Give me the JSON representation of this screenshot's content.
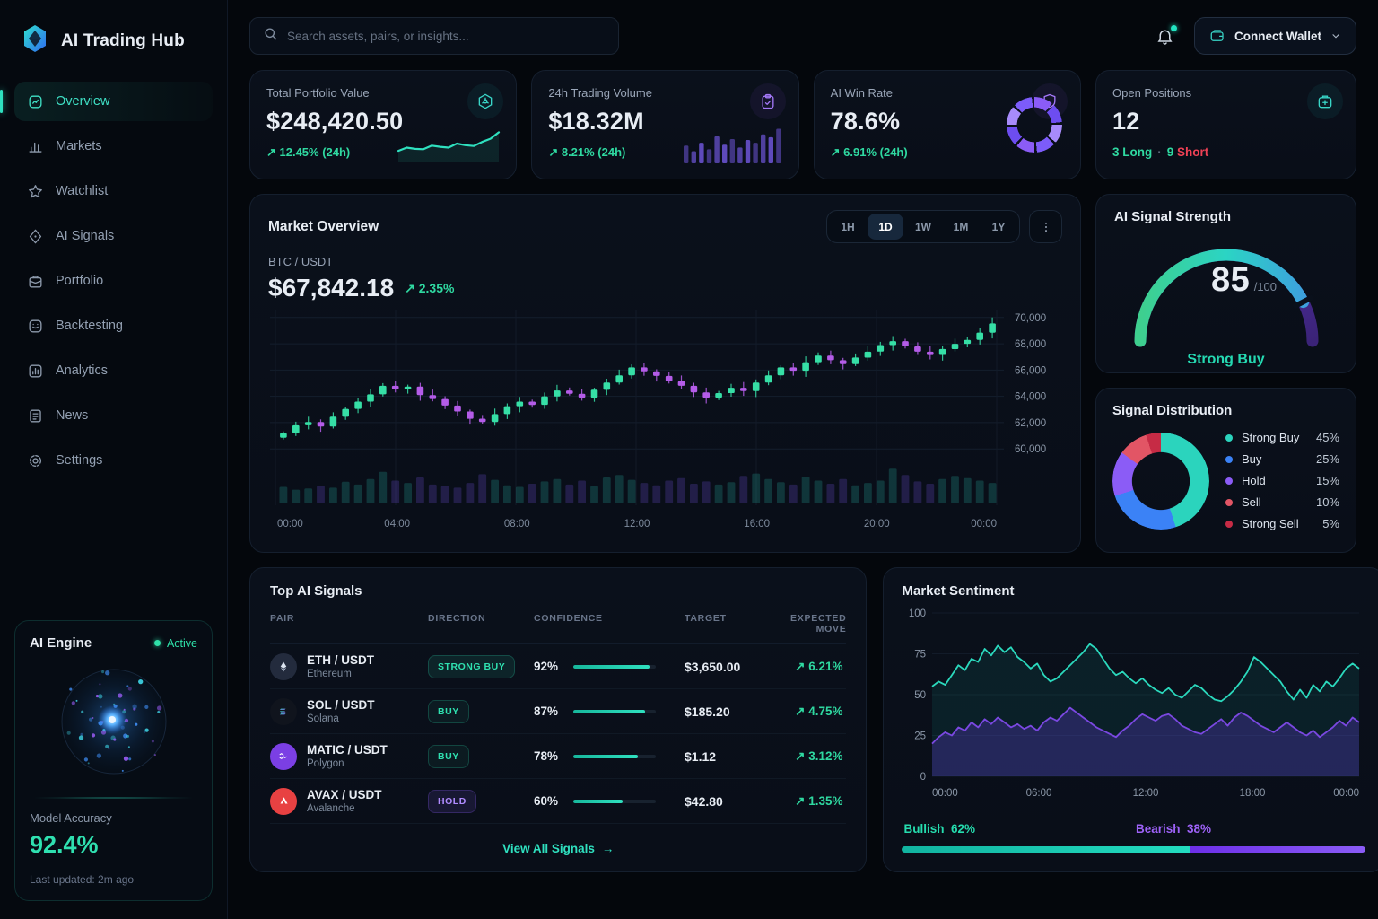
{
  "app": {
    "title": "AI Trading Hub"
  },
  "colors": {
    "accent_teal": "#2fe0bf",
    "positive_green": "#2fd9a1",
    "negative_red": "#ef4155",
    "accent_purple": "#8b5cf6",
    "candle_up": "#3ddfa9",
    "candle_down": "#b45ce8",
    "panel_bg": "#0a101b",
    "page_bg": "#04070c"
  },
  "topbar": {
    "search_placeholder": "Search assets, pairs, or insights...",
    "search_icon": "search-icon",
    "bell_icon": "bell-icon",
    "wallet_label": "Connect Wallet",
    "wallet_icon": "wallet-icon",
    "chevron_icon": "chevron-down-icon"
  },
  "sidebar": {
    "items": [
      {
        "label": "Overview",
        "icon": "overview",
        "active": true
      },
      {
        "label": "Markets",
        "icon": "markets",
        "active": false
      },
      {
        "label": "Watchlist",
        "icon": "watchlist",
        "active": false
      },
      {
        "label": "AI Signals",
        "icon": "signals",
        "active": false
      },
      {
        "label": "Portfolio",
        "icon": "portfolio",
        "active": false
      },
      {
        "label": "Backtesting",
        "icon": "backtesting",
        "active": false
      },
      {
        "label": "Analytics",
        "icon": "analytics",
        "active": false
      },
      {
        "label": "News",
        "icon": "news",
        "active": false
      },
      {
        "label": "Settings",
        "icon": "settings",
        "active": false
      }
    ],
    "ai_engine": {
      "title": "AI Engine",
      "status": "Active",
      "accuracy_label": "Model Accuracy",
      "accuracy": "92.4%",
      "updated": "Last updated: 2m ago"
    }
  },
  "stat_cards": [
    {
      "label": "Total Portfolio Value",
      "value": "$248,420.50",
      "change": "↗ 12.45% (24h)",
      "icon": "vault",
      "chip": "teal",
      "viz": "sparkline"
    },
    {
      "label": "24h Trading Volume",
      "value": "$18.32M",
      "change": "↗ 8.21% (24h)",
      "icon": "clipboard",
      "chip": "purple",
      "viz": "bars"
    },
    {
      "label": "AI Win Rate",
      "value": "78.6%",
      "change": "↗ 6.91% (24h)",
      "icon": "shield",
      "chip": "purple",
      "viz": "ring"
    },
    {
      "label": "Open Positions",
      "value": "12",
      "long_text": "3 Long",
      "separator": "·",
      "short_num": "9",
      "short_text": "Short",
      "icon": "case",
      "chip": "teal"
    }
  ],
  "market": {
    "title": "Market Overview",
    "timeframes": [
      "1H",
      "1D",
      "1W",
      "1M",
      "1Y"
    ],
    "active_timeframe": "1D",
    "more_icon": "dots-vertical-icon",
    "pair": "BTC / USDT",
    "price": "$67,842.18",
    "change": "↗ 2.35%"
  },
  "strength": {
    "title": "AI Signal Strength",
    "value": "85",
    "suffix": "/100",
    "label": "Strong Buy"
  },
  "distribution": {
    "title": "Signal Distribution",
    "items": [
      {
        "label": "Strong Buy",
        "pct": "45%",
        "value": 45,
        "color": "#2bd4bd"
      },
      {
        "label": "Buy",
        "pct": "25%",
        "value": 25,
        "color": "#3b82f6"
      },
      {
        "label": "Hold",
        "pct": "15%",
        "value": 15,
        "color": "#8b5cf6"
      },
      {
        "label": "Sell",
        "pct": "10%",
        "value": 10,
        "color": "#e25565"
      },
      {
        "label": "Strong Sell",
        "pct": "5%",
        "value": 5,
        "color": "#c62b45"
      }
    ]
  },
  "signals": {
    "title": "Top AI Signals",
    "columns": [
      "PAIR",
      "DIRECTION",
      "CONFIDENCE",
      "TARGET",
      "EXPECTED MOVE"
    ],
    "rows": [
      {
        "pair": "ETH / USDT",
        "name": "Ethereum",
        "coin": "eth",
        "direction": "STRONG BUY",
        "confidence": 92,
        "confidence_text": "92%",
        "target": "$3,650.00",
        "move": "↗ 6.21%"
      },
      {
        "pair": "SOL / USDT",
        "name": "Solana",
        "coin": "sol",
        "direction": "BUY",
        "confidence": 87,
        "confidence_text": "87%",
        "target": "$185.20",
        "move": "↗ 4.75%"
      },
      {
        "pair": "MATIC / USDT",
        "name": "Polygon",
        "coin": "matic",
        "direction": "BUY",
        "confidence": 78,
        "confidence_text": "78%",
        "target": "$1.12",
        "move": "↗ 3.12%"
      },
      {
        "pair": "AVAX / USDT",
        "name": "Avalanche",
        "coin": "avax",
        "direction": "HOLD",
        "confidence": 60,
        "confidence_text": "60%",
        "target": "$42.80",
        "move": "↗ 1.35%"
      }
    ],
    "footer": "View All Signals",
    "footer_arrow": "→"
  },
  "sentiment": {
    "title": "Market Sentiment",
    "bullish_label": "Bullish",
    "bullish_value": "62%",
    "bearish_label": "Bearish",
    "bearish_value": "38%",
    "bullish_pct": 62,
    "bearish_pct": 38
  },
  "chart_data": [
    {
      "type": "candlestick",
      "title": "Market Overview",
      "pair": "BTC / USDT",
      "timeframe": "1D",
      "ylim": [
        59400,
        70600
      ],
      "y_ticks": [
        70000,
        68000,
        66000,
        64000,
        62000,
        60000
      ],
      "x_ticks": [
        "00:00",
        "04:00",
        "08:00",
        "12:00",
        "16:00",
        "20:00",
        "00:00"
      ],
      "closes": [
        61200,
        61800,
        62050,
        61700,
        62450,
        63050,
        63600,
        64150,
        64800,
        64550,
        64750,
        64100,
        63800,
        63300,
        62850,
        62300,
        62050,
        62650,
        63250,
        63600,
        63350,
        64000,
        64450,
        64200,
        63900,
        64500,
        65050,
        65600,
        66200,
        65900,
        65550,
        65150,
        64800,
        64300,
        63900,
        64250,
        64650,
        64400,
        65050,
        65600,
        66200,
        65950,
        66600,
        67100,
        66750,
        66450,
        66950,
        67400,
        67900,
        68200,
        67800,
        67400,
        67150,
        67600,
        68000,
        68300,
        68850,
        69550
      ],
      "volumes": [
        42,
        35,
        38,
        45,
        40,
        55,
        48,
        62,
        80,
        58,
        52,
        66,
        48,
        44,
        40,
        52,
        74,
        60,
        46,
        42,
        50,
        56,
        62,
        48,
        58,
        44,
        66,
        72,
        60,
        52,
        46,
        58,
        64,
        50,
        56,
        48,
        54,
        70,
        76,
        62,
        54,
        48,
        68,
        58,
        50,
        62,
        46,
        52,
        58,
        88,
        72,
        56,
        50,
        62,
        70,
        64,
        58,
        52
      ]
    },
    {
      "type": "line",
      "title": "Market Sentiment",
      "ylim": [
        0,
        100
      ],
      "y_ticks": [
        100,
        75,
        50,
        25,
        0
      ],
      "x_ticks": [
        "00:00",
        "06:00",
        "12:00",
        "18:00",
        "00:00"
      ],
      "series": [
        {
          "name": "Bullish",
          "color": "#2bd9bd",
          "values": [
            55,
            58,
            56,
            62,
            68,
            65,
            72,
            70,
            78,
            74,
            80,
            76,
            79,
            73,
            70,
            66,
            69,
            62,
            58,
            60,
            64,
            68,
            72,
            76,
            81,
            78,
            72,
            66,
            62,
            64,
            60,
            57,
            60,
            56,
            53,
            51,
            54,
            50,
            48,
            52,
            56,
            54,
            50,
            47,
            46,
            49,
            53,
            58,
            64,
            73,
            70,
            66,
            62,
            58,
            52,
            47,
            53,
            48,
            56,
            52,
            58,
            55,
            60,
            66,
            69,
            66
          ]
        },
        {
          "name": "Bearish",
          "color": "#8b3df2",
          "values": [
            20,
            24,
            27,
            25,
            30,
            28,
            33,
            30,
            35,
            32,
            36,
            33,
            30,
            32,
            29,
            31,
            28,
            33,
            36,
            34,
            38,
            42,
            39,
            36,
            33,
            30,
            28,
            26,
            24,
            28,
            31,
            35,
            38,
            36,
            34,
            37,
            38,
            35,
            31,
            29,
            27,
            26,
            29,
            32,
            35,
            31,
            36,
            39,
            37,
            34,
            31,
            29,
            27,
            30,
            33,
            30,
            27,
            25,
            28,
            24,
            27,
            30,
            34,
            31,
            36,
            33
          ]
        }
      ],
      "summary": {
        "bullish": 62,
        "bearish": 38
      }
    },
    {
      "type": "gauge",
      "title": "AI Signal Strength",
      "value": 85,
      "max": 100,
      "label": "Strong Buy"
    },
    {
      "type": "pie",
      "title": "Signal Distribution",
      "categories": [
        "Strong Buy",
        "Buy",
        "Hold",
        "Sell",
        "Strong Sell"
      ],
      "values": [
        45,
        25,
        15,
        10,
        5
      ]
    },
    {
      "type": "area",
      "title": "Portfolio sparkline",
      "values": [
        22,
        30,
        27,
        26,
        35,
        32,
        30,
        40,
        36,
        34,
        44,
        52,
        68
      ]
    },
    {
      "type": "bar",
      "title": "Volume mini bars",
      "values": [
        38,
        26,
        44,
        30,
        58,
        40,
        52,
        34,
        50,
        44,
        62,
        56,
        74
      ]
    }
  ]
}
